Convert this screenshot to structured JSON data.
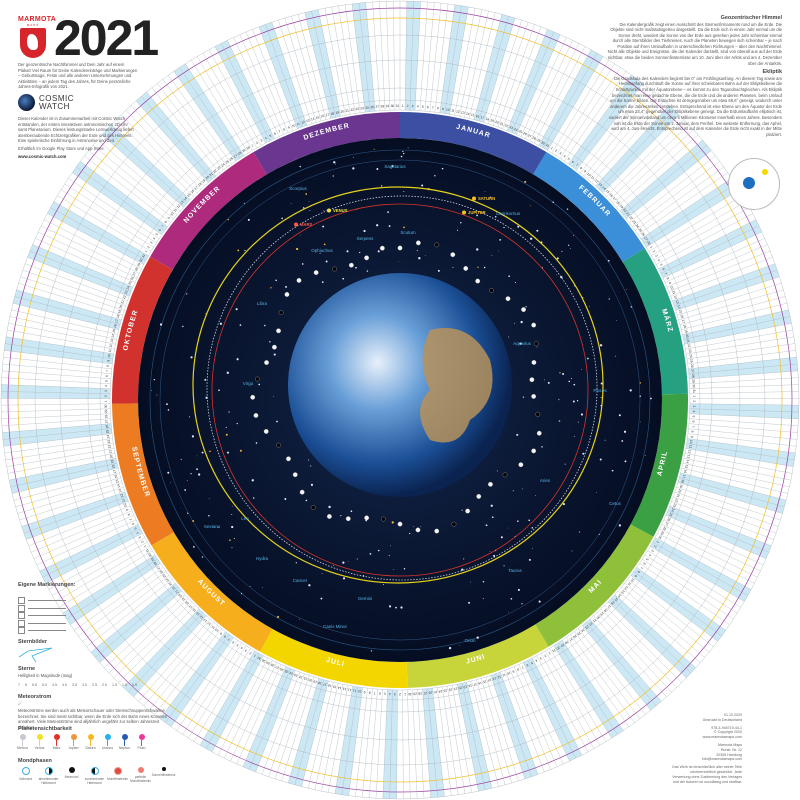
{
  "header": {
    "brand": "MARMOTA",
    "brand_sub": "MAPS",
    "year": "2021",
    "intro": "Der geozentrische Nachthimmel und Dein Jahr auf einem Plakat! Viel Raum für Deine Kalendereinträge und Markierungen – Geburtstage, Feste und alle anderen Unternehmungen und Aktivitäten – an jedem Tag des Jahres, für Deine persönliche Jahres-Infografik von 2021."
  },
  "cosmic_watch": {
    "name_line1": "COSMIC",
    "name_line2": "WATCH",
    "text": "Dieser Kalender ist in Zusammenarbeit mit Cosmic Watch entstanden, der ersten interaktiven astronomischen 3D-Uhr samt Planetarium. Dieses leistungsstarke Lernwerkzeug liefert atemberaubende Echtzeitgrafiken der Erde und des Himmels. Eine spielerische Einführung in Astronomie und Zeit.",
    "store": "Erhältlich im Google Play Store und App Store.",
    "url": "www.cosmic-watch.com"
  },
  "info": {
    "geo_title": "Geozentrischer Himmel",
    "geo_text": "Die Kalendergrafik zeigt einen Ausschnitt des Sternenfirmaments rund um die Erde. Die Objekte sind nicht maßstabsgetreu dargestellt. Da die Erde sich in einem Jahr einmal um die Sonne dreht, wandert die Sonne von der Erde aus gesehen jedes Jahr scheinbar einmal durch alle Sternbilder des Tierkreises. Auch die Planeten bewegen sich scheinbar – je nach Position auf ihren Umlaufbahn in unterschiedlichen Richtungen – über den Nachthimmel. Nicht alle Objekte und Ereignisse, die der Kalender darstellt, sind von überall aus auf der Erde sichtbar, etwa die beiden Sonnenfinsternisse am 10. Juni über der Arktis und am 4. Dezember über der Antarktis.",
    "ecl_title": "Ekliptik",
    "ecl_text": "Die Gradskala des Kalenders beginnt bei 0° am Frühlingsanfang. An diesem Tag sowie am Herbstanfang durchläuft die Sonne auf ihrer scheinbaren Bahn auf der Ekliptikebene die Schnittpunkte mit der Äquatorebene – es kommt zu den Tagundnachtgleichen. Als Ekliptik bezeichnet man eine gedachte Ebene, die die Erde und die anderen Planeten, beim Umlauf um die Sonne bilden. Die Erdachse ist demgegenüber um etwa 66,6° geneigt, wodurch unter anderem die Jahreszeiten entstehen. Entsprechend ist eine Ebene um den Äquator der Erde um etwa 23,4° gegenüber der Ekliptikebene geneigt. Da die Erdumlaufbahn elliptisch ist, variiert der Sonnenabstand um circa 5 Millionen Kilometer innerhalb eines Jahres. Besonders nah ist die Erde der Sonne am 2. Januar, dem Perihel. Die weiteste Entfernung, das Aphel, wird am 4. Juni erreicht. Entsprechend ist auf dem Kalender die Erde nicht exakt in der Mitte platziert."
  },
  "legend": {
    "markings_title": "Eigene Markierungen:",
    "constellations_title": "Sternbilder",
    "stars_title": "Sterne",
    "stars_sub": "Helligkeit in Magnitude (mag)",
    "magnitudes": [
      "7",
      "6",
      "5.5",
      "5.0",
      "4.5",
      "4.0",
      "3.5",
      "3.0",
      "2.5",
      "2.0",
      "1.5",
      "1.0",
      "0.5"
    ],
    "meteor_title": "Meteorstrom",
    "meteor_text": "Meteorströme werden auch als Meteorschauer oder Sternschnuppenschwärme bezeichnet. Sie sind meist sichtbar, wenn die Erde sich der Bahn eines Kometen annähert. Viele Meteorströme sind alljährlich ungefähr zur selben Jahreszeit sichtbar.",
    "planets_title": "Planetensichtbarkeit",
    "planets": [
      {
        "name": "Merkur",
        "color": "#c8c8d0"
      },
      {
        "name": "Venus",
        "color": "#f2e02a"
      },
      {
        "name": "Mars",
        "color": "#e0302a"
      },
      {
        "name": "Jupiter",
        "color": "#f0943a"
      },
      {
        "name": "Saturn",
        "color": "#f5b820"
      },
      {
        "name": "Uranus",
        "color": "#2ab0e8"
      },
      {
        "name": "Neptun",
        "color": "#2a5ab0"
      },
      {
        "name": "Pluto",
        "color": "#e83a9a"
      }
    ],
    "moon_title": "Mondphasen",
    "moons": [
      {
        "name": "Vollmond",
        "style": "full"
      },
      {
        "name": "abnehmender Halbmond",
        "style": "half"
      },
      {
        "name": "Neumond",
        "style": "new"
      },
      {
        "name": "zunehmender Halbmond",
        "style": "half2"
      },
      {
        "name": "Mondfinsternis",
        "style": "eclipse"
      },
      {
        "name": "partielle Mondfinsternis",
        "style": "partial"
      },
      {
        "name": "Sonnenfinsternis",
        "style": "solar"
      }
    ]
  },
  "imprint": {
    "date": "01.10.2020",
    "printed": "Gedruckt in Deutschland",
    "isbn": "978-3-946719-44-1",
    "copyright": "© Copyright 2020",
    "web": "www.marmotamaps.com",
    "company": "Marmota Maps",
    "street": "Rurstr. Nr. 12",
    "city": "20355 Hamburg",
    "email": "info@marmotamaps.com",
    "rights": "Das Werk ist einschließlich aller seiner Teile urheberrechtlich geschützt. Jede Verwertung ohne Zustimmung des Verlages und der Autoren ist unzulässig und strafbar."
  },
  "calendar": {
    "months": [
      {
        "name": "JANUAR",
        "color": "#3d4fa3",
        "days": 31
      },
      {
        "name": "FEBRUAR",
        "color": "#3a8fd8",
        "days": 28
      },
      {
        "name": "MÄRZ",
        "color": "#25a081",
        "days": 31
      },
      {
        "name": "APRIL",
        "color": "#3aa043",
        "days": 30
      },
      {
        "name": "MAI",
        "color": "#8fc03a",
        "days": 31
      },
      {
        "name": "JUNI",
        "color": "#c7d43a",
        "days": 30
      },
      {
        "name": "JULI",
        "color": "#f3d600",
        "days": 31
      },
      {
        "name": "AUGUST",
        "color": "#f6ae1c",
        "days": 31
      },
      {
        "name": "SEPTEMBER",
        "color": "#ec7b22",
        "days": 30
      },
      {
        "name": "OKTOBER",
        "color": "#d2322e",
        "days": 31
      },
      {
        "name": "NOVEMBER",
        "color": "#ad2a7c",
        "days": 30
      },
      {
        "name": "DEZEMBER",
        "color": "#6a3690",
        "days": 31
      }
    ],
    "weekend_color": "#cde8f5",
    "first_weekday": 5
  },
  "sky": {
    "constellations": [
      "Sagittarius",
      "Scorpius",
      "Capricornus",
      "Aquarius",
      "Ophiuchus",
      "Serpens",
      "Scutum",
      "Libra",
      "Virgo",
      "Leo",
      "Cancer",
      "Gemini",
      "Orion",
      "Taurus",
      "Aries",
      "Pisces",
      "Cetus",
      "Hydra",
      "Sextans",
      "Canis Minor"
    ],
    "planets": [
      "VENUS",
      "MARS",
      "JUPITER",
      "SATURN"
    ]
  }
}
